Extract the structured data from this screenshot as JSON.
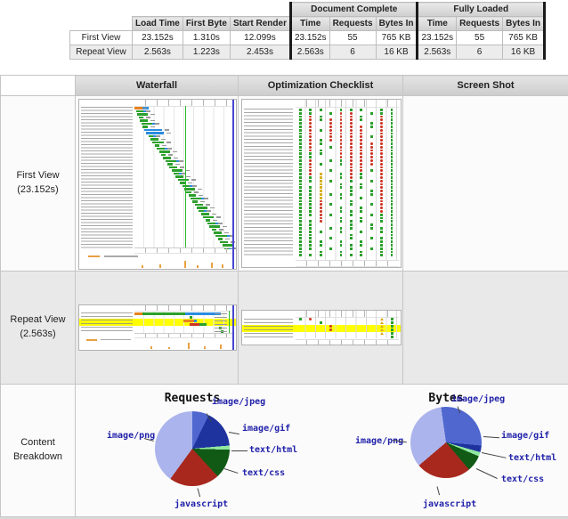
{
  "summary_table": {
    "group_headers": [
      {
        "label": "Document Complete",
        "colspan": 3
      },
      {
        "label": "Fully Loaded",
        "colspan": 3
      }
    ],
    "columns": [
      "",
      "Load Time",
      "First Byte",
      "Start Render",
      "Time",
      "Requests",
      "Bytes In",
      "Time",
      "Requests",
      "Bytes In"
    ],
    "rows": [
      {
        "label": "First View",
        "values": [
          "23.152s",
          "1.310s",
          "12.099s",
          "23.152s",
          "55",
          "765 KB",
          "23.152s",
          "55",
          "765 KB"
        ]
      },
      {
        "label": "Repeat View",
        "values": [
          "2.563s",
          "1.223s",
          "2.453s",
          "2.563s",
          "6",
          "16 KB",
          "2.563s",
          "6",
          "16 KB"
        ]
      }
    ]
  },
  "results_grid": {
    "column_headers": [
      "Waterfall",
      "Optimization Checklist",
      "Screen Shot"
    ],
    "rows": [
      {
        "label": "First View",
        "sublabel": "(23.152s)"
      },
      {
        "label": "Repeat View",
        "sublabel": "(2.563s)"
      },
      {
        "label": "Content Breakdown",
        "sublabel": ""
      }
    ]
  },
  "chart_data": [
    {
      "type": "pie",
      "title": "Requests",
      "labels": [
        "image/jpeg",
        "image/gif",
        "text/html",
        "text/css",
        "javascript",
        "image/png"
      ],
      "values": [
        4,
        9,
        1,
        7,
        12,
        22
      ],
      "total": 55,
      "units": "requests",
      "colors": [
        "#4f67cf",
        "#1e339e",
        "#90e8a0",
        "#115a16",
        "#a8281e",
        "#abb4ec"
      ],
      "start_angle": 0,
      "label_color": "#2121aa",
      "legend_position": "callout-labels"
    },
    {
      "type": "pie",
      "title": "Bytes",
      "labels": [
        "image/jpeg",
        "image/gif",
        "text/html",
        "text/css",
        "javascript",
        "image/png"
      ],
      "values": [
        219,
        23,
        15,
        57,
        191,
        260
      ],
      "total": 765,
      "units": "KB",
      "colors": [
        "#4f67cf",
        "#1e339e",
        "#90e8a0",
        "#115a16",
        "#a8281e",
        "#abb4ec"
      ],
      "start_angle": -8,
      "label_color": "#2121aa",
      "legend_position": "callout-labels"
    }
  ],
  "thumbnails": {
    "palette": {
      "green": "#2ca02c",
      "blue": "#2a8ce0",
      "orange": "#e8821e",
      "red": "#cc3322",
      "edge": "#4646d2",
      "yellow": "#ffff00",
      "gridline": "#e6e6e6",
      "startrender": "#2cb82c"
    },
    "first_view_waterfall": {
      "rows": 46,
      "wide_blue_rows": [
        7,
        8
      ],
      "green_line_pct": 52
    },
    "first_view_checklist": {
      "rows": 44,
      "columns": [
        {
          "red": [],
          "yellow": [],
          "density": 1
        },
        {
          "red": [
            [
              2,
              12
            ],
            [
              15,
              19
            ]
          ],
          "yellow": [],
          "density": 0.9
        },
        {
          "red": [
            [
              27,
              33
            ]
          ],
          "yellow": [
            [
              19,
              26
            ]
          ],
          "density": 0.5
        },
        {
          "red": [
            [
              3,
              9
            ]
          ],
          "yellow": [],
          "density": 0.3
        },
        {
          "red": [
            [
              1,
              14
            ]
          ],
          "yellow": [],
          "density": 0.6
        },
        {
          "red": [
            [
              1,
              20
            ]
          ],
          "yellow": [],
          "density": 0.7
        },
        {
          "red": [
            [
              5,
              18
            ]
          ],
          "yellow": [],
          "density": 0.5
        },
        {
          "red": [
            [
              10,
              16
            ]
          ],
          "yellow": [],
          "density": 0.4
        },
        {
          "red": [
            [
              2,
              30
            ]
          ],
          "yellow": [],
          "density": 0.8
        },
        {
          "red": [],
          "yellow": [],
          "density": 1
        }
      ]
    },
    "repeat_view_waterfall": {
      "yellow_rows": [
        2,
        3
      ],
      "green_line_pct": 96,
      "rows": [
        [
          {
            "l": 0,
            "w": 8,
            "c": "orange"
          },
          {
            "l": 8,
            "w": 44,
            "c": "green"
          },
          {
            "l": 52,
            "w": 36,
            "c": "blue"
          }
        ],
        [
          {
            "l": 56,
            "w": 3,
            "c": "green"
          }
        ],
        [
          {
            "l": 50,
            "w": 11,
            "c": "orange"
          },
          {
            "l": 61,
            "w": 3,
            "c": "blue"
          }
        ],
        [
          {
            "l": 56,
            "w": 10,
            "c": "red"
          },
          {
            "l": 66,
            "w": 8,
            "c": "green"
          }
        ],
        [
          {
            "l": 86,
            "w": 3,
            "c": "green"
          }
        ],
        [
          {
            "l": 88,
            "w": 3,
            "c": "green"
          }
        ]
      ]
    },
    "repeat_view_checklist": {
      "yellow_rows": [
        2,
        3
      ],
      "icons": [
        {
          "r": 0,
          "c": 0,
          "t": "check"
        },
        {
          "r": 0,
          "c": 1,
          "t": "x"
        },
        {
          "r": 1,
          "c": 2,
          "t": "check"
        },
        {
          "r": 2,
          "c": 3,
          "t": "x"
        },
        {
          "r": 3,
          "c": 3,
          "t": "x"
        },
        {
          "r": 0,
          "c": 8,
          "t": "warn"
        },
        {
          "r": 1,
          "c": 8,
          "t": "warn"
        },
        {
          "r": 2,
          "c": 8,
          "t": "warn"
        },
        {
          "r": 3,
          "c": 8,
          "t": "warn"
        },
        {
          "r": 4,
          "c": 8,
          "t": "warn"
        },
        {
          "r": 0,
          "c": 9,
          "t": "check"
        },
        {
          "r": 1,
          "c": 9,
          "t": "check"
        },
        {
          "r": 2,
          "c": 9,
          "t": "check"
        },
        {
          "r": 3,
          "c": 9,
          "t": "check"
        },
        {
          "r": 4,
          "c": 9,
          "t": "check"
        },
        {
          "r": 5,
          "c": 9,
          "t": "check"
        }
      ]
    }
  }
}
